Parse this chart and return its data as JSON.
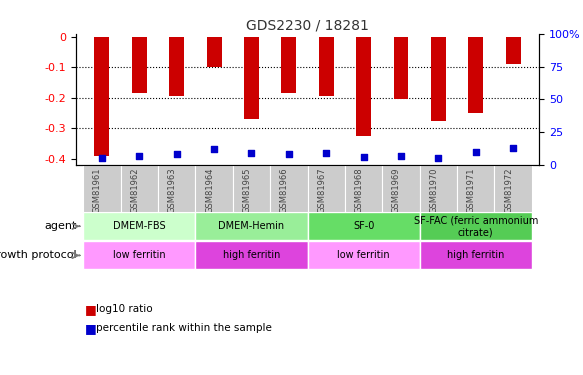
{
  "title": "GDS2230 / 18281",
  "samples": [
    "GSM81961",
    "GSM81962",
    "GSM81963",
    "GSM81964",
    "GSM81965",
    "GSM81966",
    "GSM81967",
    "GSM81968",
    "GSM81969",
    "GSM81970",
    "GSM81971",
    "GSM81972"
  ],
  "log10_ratio": [
    -0.39,
    -0.185,
    -0.195,
    -0.1,
    -0.27,
    -0.185,
    -0.195,
    -0.325,
    -0.205,
    -0.275,
    -0.25,
    -0.09
  ],
  "percentile_rank": [
    5,
    7,
    8,
    12,
    9,
    8,
    9,
    6,
    7,
    5,
    10,
    13
  ],
  "ylim_left": [
    -0.42,
    0.01
  ],
  "ylim_right": [
    0,
    100
  ],
  "yticks_left": [
    -0.4,
    -0.3,
    -0.2,
    -0.1,
    0
  ],
  "yticks_right": [
    0,
    25,
    50,
    75,
    100
  ],
  "bar_color": "#cc0000",
  "pct_color": "#0000cc",
  "agent_groups": [
    {
      "label": "DMEM-FBS",
      "start": 0,
      "end": 3,
      "color": "#ccffcc"
    },
    {
      "label": "DMEM-Hemin",
      "start": 3,
      "end": 6,
      "color": "#99ee99"
    },
    {
      "label": "SF-0",
      "start": 6,
      "end": 9,
      "color": "#66dd66"
    },
    {
      "label": "SF-FAC (ferric ammonium\ncitrate)",
      "start": 9,
      "end": 12,
      "color": "#55cc55"
    }
  ],
  "growth_groups": [
    {
      "label": "low ferritin",
      "start": 0,
      "end": 3,
      "color": "#ff99ff"
    },
    {
      "label": "high ferritin",
      "start": 3,
      "end": 6,
      "color": "#dd44dd"
    },
    {
      "label": "low ferritin",
      "start": 6,
      "end": 9,
      "color": "#ff99ff"
    },
    {
      "label": "high ferritin",
      "start": 9,
      "end": 12,
      "color": "#dd44dd"
    }
  ],
  "legend_bar_label": "log10 ratio",
  "legend_pct_label": "percentile rank within the sample",
  "xlabel_agent": "agent",
  "xlabel_growth": "growth protocol",
  "sample_box_color": "#cccccc",
  "bar_width": 0.4
}
